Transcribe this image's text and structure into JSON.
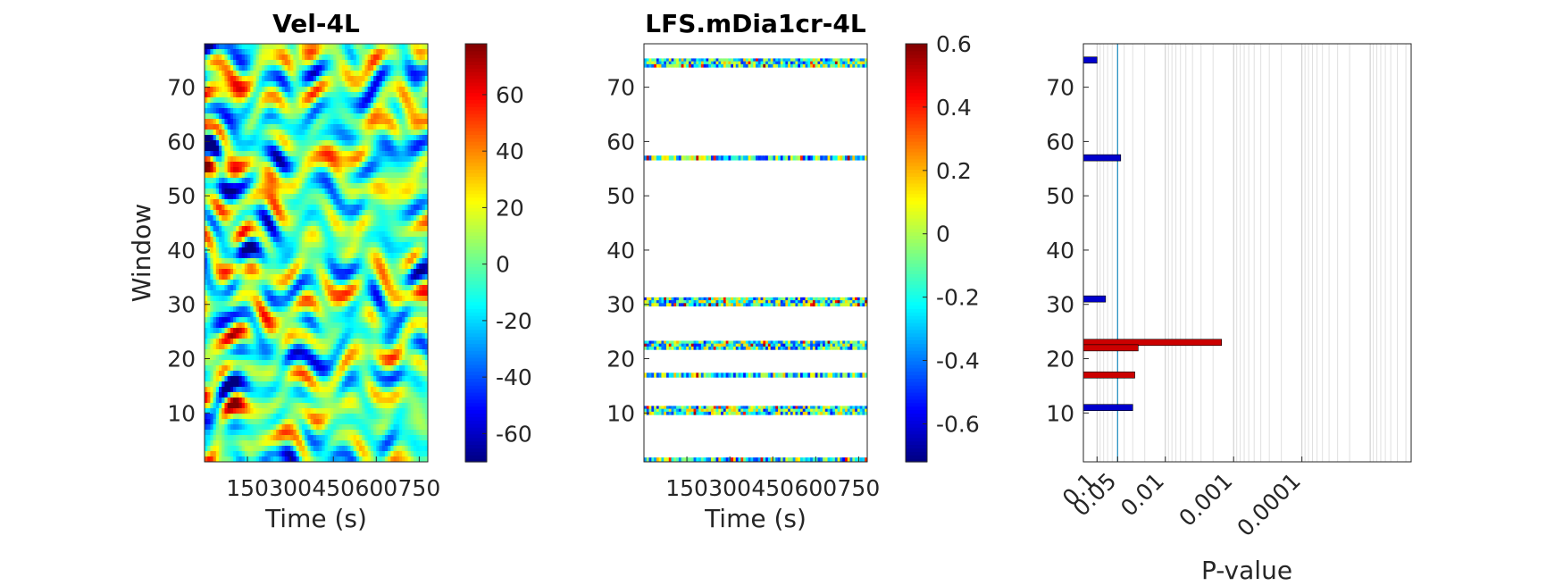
{
  "chart_data": [
    {
      "type": "heatmap",
      "title": "Vel-4L",
      "xlabel": "Time (s)",
      "ylabel": "Window",
      "xlim": [
        0,
        780
      ],
      "ylim": [
        1,
        78
      ],
      "xticks": [
        150,
        300,
        450,
        600,
        750
      ],
      "xtick_labels": [
        "150",
        "300",
        "450",
        "600",
        "750"
      ],
      "yticks": [
        10,
        20,
        30,
        40,
        50,
        60,
        70
      ],
      "colormap": "jet",
      "clim": [
        -70,
        78
      ],
      "colorbar_ticks": [
        -60,
        -40,
        -20,
        0,
        20,
        40,
        60
      ]
    },
    {
      "type": "heatmap",
      "title": "LFS.mDia1cr-4L",
      "xlabel": "Time (s)",
      "ylabel": "",
      "xlim": [
        0,
        780
      ],
      "ylim": [
        1,
        78
      ],
      "xticks": [
        150,
        300,
        450,
        600,
        750
      ],
      "xtick_labels": [
        "150",
        "300",
        "450",
        "600",
        "750"
      ],
      "yticks": [
        10,
        20,
        30,
        40,
        50,
        60,
        70
      ],
      "colormap": "jet",
      "clim": [
        -0.72,
        0.6
      ],
      "colorbar_ticks": [
        -0.6,
        -0.4,
        -0.2,
        0,
        0.2,
        0.4,
        0.6
      ],
      "colorbar_tick_labels": [
        "-0.6",
        "-0.4",
        "-0.2",
        "0",
        "0.2",
        "0.4",
        "0.6"
      ],
      "bands": [
        {
          "center": 74.5,
          "height": 1.6
        },
        {
          "center": 57.0,
          "height": 0.8
        },
        {
          "center": 30.5,
          "height": 1.6
        },
        {
          "center": 22.5,
          "height": 1.6
        },
        {
          "center": 17.0,
          "height": 0.8
        },
        {
          "center": 10.5,
          "height": 1.6
        },
        {
          "center": 1.4,
          "height": 0.8
        }
      ]
    },
    {
      "type": "bar",
      "orientation": "horizontal",
      "title": "",
      "xlabel": "P-value",
      "ylabel": "",
      "xscale": "log",
      "xlim_neglog10": [
        0.8,
        5.6
      ],
      "ylim": [
        1,
        78
      ],
      "yticks": [
        10,
        20,
        30,
        40,
        50,
        60,
        70
      ],
      "xticks": [
        0.1,
        0.05,
        0.01,
        0.001,
        0.0001
      ],
      "xtick_labels": [
        "0.1",
        "0.05",
        "0.01",
        "0.001",
        "0.0001"
      ],
      "threshold": 0.05,
      "colors": {
        "negative": "#0000CC",
        "positive": "#CC0000",
        "threshold": "#1a8cbf"
      },
      "bars": [
        {
          "window": 75,
          "p": 0.1,
          "sign": "negative"
        },
        {
          "window": 57,
          "p": 0.045,
          "sign": "negative"
        },
        {
          "window": 31,
          "p": 0.075,
          "sign": "negative"
        },
        {
          "window": 23,
          "p": 0.0015,
          "sign": "positive"
        },
        {
          "window": 22,
          "p": 0.025,
          "sign": "positive"
        },
        {
          "window": 17,
          "p": 0.028,
          "sign": "positive"
        },
        {
          "window": 11,
          "p": 0.03,
          "sign": "negative"
        }
      ]
    }
  ]
}
